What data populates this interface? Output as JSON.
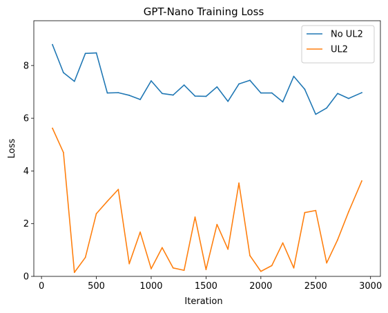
{
  "chart_data": {
    "type": "line",
    "title": "GPT-Nano Training Loss",
    "xlabel": "Iteration",
    "ylabel": "Loss",
    "xlim": [
      -70,
      3090
    ],
    "ylim": [
      0,
      9.7
    ],
    "xticks": [
      0,
      500,
      1000,
      1500,
      2000,
      2500,
      3000
    ],
    "xtick_labels": [
      "0",
      "500",
      "1000",
      "1500",
      "2000",
      "2500",
      "3000"
    ],
    "yticks": [
      0,
      2,
      4,
      6,
      8
    ],
    "ytick_labels": [
      "0",
      "2",
      "4",
      "6",
      "8"
    ],
    "grid": false,
    "legend_position": "upper right",
    "x": [
      100,
      200,
      300,
      400,
      500,
      600,
      700,
      800,
      900,
      1000,
      1100,
      1200,
      1300,
      1400,
      1500,
      1600,
      1700,
      1800,
      1900,
      2000,
      2100,
      2200,
      2300,
      2400,
      2500,
      2600,
      2700,
      2800,
      2920
    ],
    "series": [
      {
        "name": "No UL2",
        "color": "#1f77b4",
        "values": [
          8.79,
          7.73,
          7.4,
          8.46,
          8.48,
          6.96,
          6.97,
          6.87,
          6.71,
          7.42,
          6.94,
          6.88,
          7.26,
          6.84,
          6.83,
          7.19,
          6.64,
          7.3,
          7.44,
          6.96,
          6.96,
          6.62,
          7.59,
          7.1,
          6.15,
          6.39,
          6.94,
          6.75,
          6.97
        ]
      },
      {
        "name": "UL2",
        "color": "#ff7f0e",
        "values": [
          5.62,
          4.7,
          0.15,
          0.72,
          2.38,
          2.85,
          3.3,
          0.48,
          1.68,
          0.29,
          1.09,
          0.32,
          0.23,
          2.25,
          0.26,
          1.97,
          1.03,
          3.54,
          0.79,
          0.19,
          0.41,
          1.27,
          0.32,
          2.42,
          2.5,
          0.51,
          1.39,
          2.45,
          3.62
        ]
      }
    ]
  }
}
